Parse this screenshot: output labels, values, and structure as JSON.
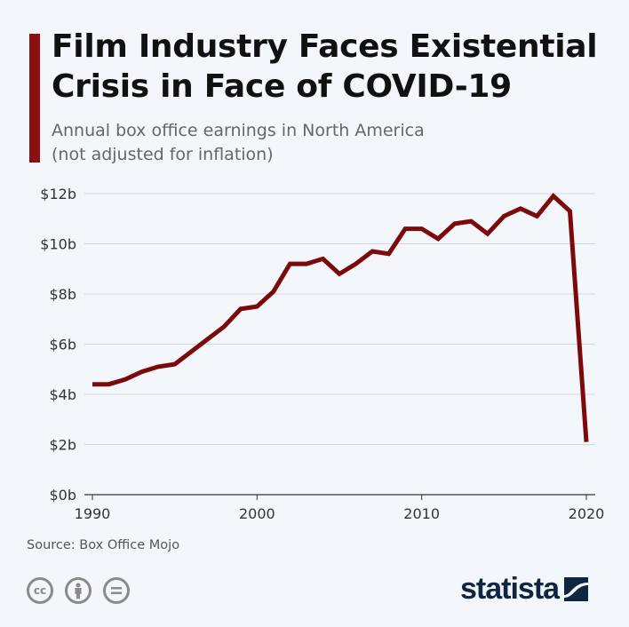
{
  "header": {
    "title": "Film Industry Faces Existential Crisis in Face of COVID-19",
    "subtitle_line1": "Annual box office earnings in North America",
    "subtitle_line2": "(not adjusted for inflation)"
  },
  "footer": {
    "source": "Source: Box Office Mojo",
    "license_icons": [
      "cc-icon",
      "by-attribution-icon",
      "no-derivatives-icon"
    ],
    "logo": "statista"
  },
  "colors": {
    "accent": "#8b1010",
    "line": "#7d0a0a",
    "background": "#f3f6fa",
    "grid": "#d3d6da",
    "logo": "#0f2540"
  },
  "chart_data": {
    "type": "line",
    "title": "Film Industry Faces Existential Crisis in Face of COVID-19",
    "subtitle": "Annual box office earnings in North America (not adjusted for inflation)",
    "xlabel": "",
    "ylabel": "",
    "xlim": [
      1990,
      2020
    ],
    "ylim": [
      0,
      12
    ],
    "grid": true,
    "x_ticks": [
      1990,
      2000,
      2010,
      2020
    ],
    "x_tick_labels": [
      "1990",
      "2000",
      "2010",
      "2020"
    ],
    "y_ticks": [
      0,
      2,
      4,
      6,
      8,
      10,
      12
    ],
    "y_tick_labels": [
      "$0b",
      "$2b",
      "$4b",
      "$6b",
      "$8b",
      "$10b",
      "$12b"
    ],
    "x": [
      1990,
      1991,
      1992,
      1993,
      1994,
      1995,
      1996,
      1997,
      1998,
      1999,
      2000,
      2001,
      2002,
      2003,
      2004,
      2005,
      2006,
      2007,
      2008,
      2009,
      2010,
      2011,
      2012,
      2013,
      2014,
      2015,
      2016,
      2017,
      2018,
      2019,
      2020
    ],
    "values": [
      4.4,
      4.4,
      4.6,
      4.9,
      5.1,
      5.2,
      5.7,
      6.2,
      6.7,
      7.4,
      7.5,
      8.1,
      9.2,
      9.2,
      9.4,
      8.8,
      9.2,
      9.7,
      9.6,
      10.6,
      10.6,
      10.2,
      10.8,
      10.9,
      10.4,
      11.1,
      11.4,
      11.1,
      11.9,
      11.3,
      2.1
    ]
  }
}
